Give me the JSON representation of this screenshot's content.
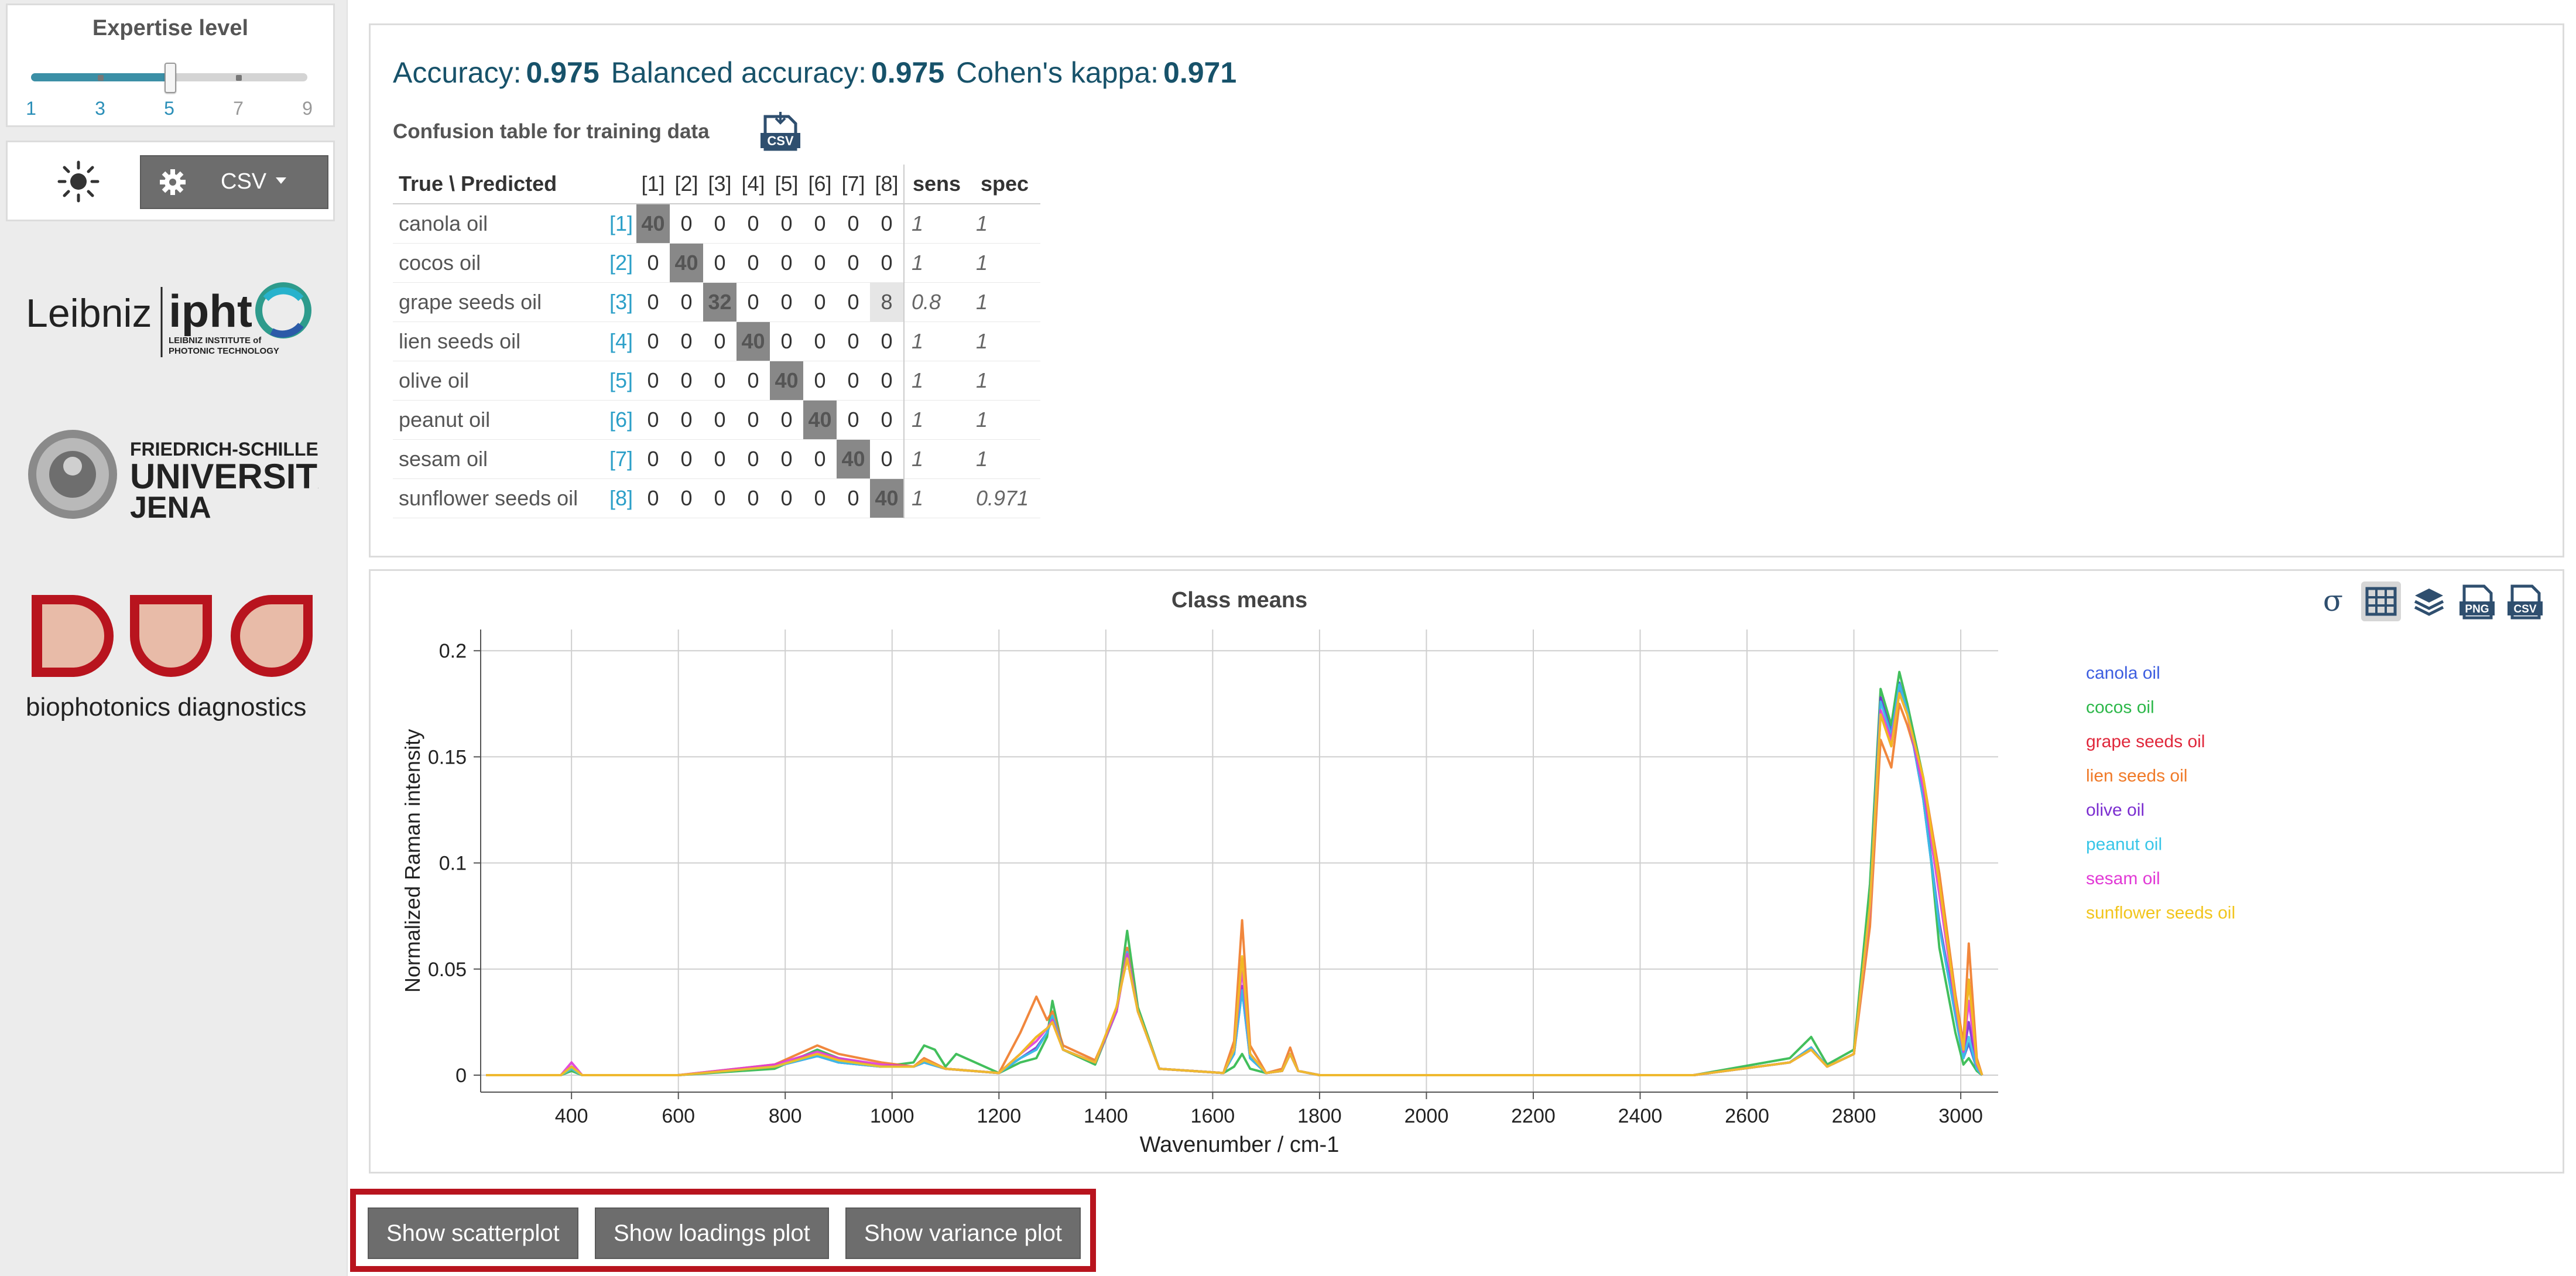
{
  "sidebar": {
    "expertise": {
      "title": "Expertise level",
      "level": 5,
      "labels": [
        "1",
        "3",
        "5",
        "7",
        "9"
      ]
    },
    "controls": {
      "theme_icon": "sun-icon",
      "settings_icon": "gear-icon",
      "csv_label": "CSV"
    },
    "logos": [
      "Leibniz IPHT",
      "Friedrich-Schiller-Universität Jena",
      "Biophotonics diagnostics"
    ]
  },
  "metrics": {
    "accuracy_label": "Accuracy:",
    "accuracy_value": "0.975",
    "balanced_label": "Balanced accuracy:",
    "balanced_value": "0.975",
    "kappa_label": "Cohen's kappa:",
    "kappa_value": "0.971"
  },
  "confusion": {
    "title": "Confusion table for training data",
    "header_label": "True \\ Predicted",
    "col_labels": [
      "[1]",
      "[2]",
      "[3]",
      "[4]",
      "[5]",
      "[6]",
      "[7]",
      "[8]"
    ],
    "sens_label": "sens",
    "spec_label": "spec",
    "rows": [
      {
        "name": "canola oil",
        "idx": "[1]",
        "cells": [
          "40",
          "0",
          "0",
          "0",
          "0",
          "0",
          "0",
          "0"
        ],
        "sens": "1",
        "spec": "1"
      },
      {
        "name": "cocos oil",
        "idx": "[2]",
        "cells": [
          "0",
          "40",
          "0",
          "0",
          "0",
          "0",
          "0",
          "0"
        ],
        "sens": "1",
        "spec": "1"
      },
      {
        "name": "grape seeds oil",
        "idx": "[3]",
        "cells": [
          "0",
          "0",
          "32",
          "0",
          "0",
          "0",
          "0",
          "8"
        ],
        "sens": "0.8",
        "spec": "1"
      },
      {
        "name": "lien seeds oil",
        "idx": "[4]",
        "cells": [
          "0",
          "0",
          "0",
          "40",
          "0",
          "0",
          "0",
          "0"
        ],
        "sens": "1",
        "spec": "1"
      },
      {
        "name": "olive oil",
        "idx": "[5]",
        "cells": [
          "0",
          "0",
          "0",
          "0",
          "40",
          "0",
          "0",
          "0"
        ],
        "sens": "1",
        "spec": "1"
      },
      {
        "name": "peanut oil",
        "idx": "[6]",
        "cells": [
          "0",
          "0",
          "0",
          "0",
          "0",
          "40",
          "0",
          "0"
        ],
        "sens": "1",
        "spec": "1"
      },
      {
        "name": "sesam oil",
        "idx": "[7]",
        "cells": [
          "0",
          "0",
          "0",
          "0",
          "0",
          "0",
          "40",
          "0"
        ],
        "sens": "1",
        "spec": "1"
      },
      {
        "name": "sunflower seeds oil",
        "idx": "[8]",
        "cells": [
          "0",
          "0",
          "0",
          "0",
          "0",
          "0",
          "0",
          "40"
        ],
        "sens": "1",
        "spec": "0.971"
      }
    ]
  },
  "plot_toolbar": {
    "icons": [
      "sigma-icon",
      "grid-icon",
      "layers-icon",
      "png-download-icon",
      "csv-download-icon"
    ]
  },
  "chart_data": {
    "type": "line",
    "title": "Class means",
    "xlabel": "Wavenumber / cm-1",
    "ylabel": "Normalized Raman intensity",
    "xlim": [
      230,
      3070
    ],
    "ylim": [
      -0.008,
      0.21
    ],
    "xticks": [
      "400",
      "600",
      "800",
      "1000",
      "1200",
      "1400",
      "1600",
      "1800",
      "2000",
      "2200",
      "2400",
      "2600",
      "2800",
      "3000"
    ],
    "yticks": [
      "0",
      "0.05",
      "0.1",
      "0.15",
      "0.2"
    ],
    "grid": true,
    "legend_position": "right",
    "series": [
      {
        "name": "canola oil",
        "color": "#3d5ee0",
        "x": [
          240,
          380,
          400,
          420,
          600,
          780,
          860,
          900,
          980,
          1040,
          1060,
          1100,
          1200,
          1240,
          1270,
          1290,
          1300,
          1320,
          1380,
          1420,
          1440,
          1460,
          1500,
          1620,
          1640,
          1655,
          1670,
          1700,
          1730,
          1745,
          1760,
          1800,
          2500,
          2680,
          2720,
          2750,
          2800,
          2830,
          2850,
          2870,
          2885,
          2900,
          2930,
          2960,
          2990,
          3005,
          3015,
          3030,
          3040
        ],
        "y": [
          0,
          0,
          0.003,
          0,
          0,
          0.004,
          0.009,
          0.006,
          0.004,
          0.004,
          0.006,
          0.003,
          0.001,
          0.008,
          0.012,
          0.02,
          0.028,
          0.012,
          0.006,
          0.03,
          0.058,
          0.03,
          0.003,
          0.001,
          0.01,
          0.04,
          0.008,
          0.001,
          0.002,
          0.01,
          0.002,
          0,
          0,
          0.006,
          0.013,
          0.004,
          0.01,
          0.08,
          0.178,
          0.162,
          0.185,
          0.172,
          0.13,
          0.07,
          0.028,
          0.008,
          0.015,
          0.003,
          0
        ]
      },
      {
        "name": "cocos oil",
        "color": "#2db84a",
        "x": [
          240,
          380,
          400,
          420,
          600,
          780,
          860,
          900,
          980,
          1040,
          1060,
          1080,
          1100,
          1120,
          1200,
          1240,
          1270,
          1290,
          1300,
          1320,
          1380,
          1420,
          1440,
          1460,
          1500,
          1620,
          1640,
          1655,
          1670,
          1700,
          1730,
          1745,
          1760,
          1800,
          2500,
          2680,
          2720,
          2750,
          2800,
          2830,
          2850,
          2870,
          2885,
          2900,
          2930,
          2960,
          2990,
          3005,
          3015,
          3030,
          3040
        ],
        "y": [
          0,
          0,
          0.002,
          0,
          0,
          0.003,
          0.012,
          0.008,
          0.004,
          0.006,
          0.014,
          0.012,
          0.004,
          0.01,
          0.001,
          0.006,
          0.008,
          0.018,
          0.035,
          0.012,
          0.005,
          0.03,
          0.068,
          0.032,
          0.003,
          0.001,
          0.004,
          0.01,
          0.003,
          0.001,
          0.002,
          0.01,
          0.002,
          0,
          0,
          0.008,
          0.018,
          0.005,
          0.012,
          0.09,
          0.182,
          0.165,
          0.19,
          0.175,
          0.14,
          0.06,
          0.02,
          0.005,
          0.008,
          0.002,
          0
        ]
      },
      {
        "name": "grape seeds oil",
        "color": "#e0283c",
        "x": [
          240,
          380,
          400,
          420,
          600,
          780,
          860,
          900,
          980,
          1040,
          1060,
          1100,
          1200,
          1240,
          1270,
          1290,
          1300,
          1320,
          1380,
          1420,
          1440,
          1460,
          1500,
          1620,
          1640,
          1655,
          1670,
          1700,
          1730,
          1745,
          1760,
          1800,
          2500,
          2680,
          2720,
          2750,
          2800,
          2830,
          2850,
          2870,
          2885,
          2900,
          2930,
          2960,
          2990,
          3005,
          3015,
          3030,
          3040
        ],
        "y": [
          0,
          0,
          0.004,
          0,
          0,
          0.004,
          0.01,
          0.007,
          0.004,
          0.004,
          0.007,
          0.003,
          0.001,
          0.01,
          0.018,
          0.022,
          0.025,
          0.012,
          0.006,
          0.032,
          0.055,
          0.03,
          0.003,
          0.001,
          0.012,
          0.055,
          0.01,
          0.001,
          0.002,
          0.01,
          0.002,
          0,
          0,
          0.006,
          0.012,
          0.004,
          0.01,
          0.08,
          0.17,
          0.155,
          0.18,
          0.17,
          0.14,
          0.09,
          0.035,
          0.012,
          0.045,
          0.006,
          0
        ]
      },
      {
        "name": "lien seeds oil",
        "color": "#f07a28",
        "x": [
          240,
          380,
          400,
          420,
          600,
          780,
          860,
          900,
          980,
          1040,
          1060,
          1100,
          1200,
          1240,
          1270,
          1290,
          1300,
          1320,
          1380,
          1420,
          1440,
          1460,
          1500,
          1620,
          1640,
          1655,
          1670,
          1700,
          1730,
          1745,
          1760,
          1800,
          2500,
          2680,
          2720,
          2750,
          2800,
          2830,
          2850,
          2870,
          2885,
          2900,
          2930,
          2960,
          2990,
          3005,
          3015,
          3030,
          3040
        ],
        "y": [
          0,
          0,
          0.003,
          0,
          0,
          0.005,
          0.014,
          0.01,
          0.006,
          0.004,
          0.008,
          0.003,
          0.001,
          0.02,
          0.037,
          0.026,
          0.03,
          0.014,
          0.007,
          0.03,
          0.06,
          0.03,
          0.003,
          0.001,
          0.016,
          0.073,
          0.014,
          0.001,
          0.003,
          0.013,
          0.002,
          0,
          0,
          0.006,
          0.013,
          0.004,
          0.01,
          0.07,
          0.158,
          0.145,
          0.175,
          0.165,
          0.14,
          0.095,
          0.038,
          0.015,
          0.062,
          0.008,
          0
        ]
      },
      {
        "name": "olive oil",
        "color": "#7b2ed0",
        "x": [
          240,
          380,
          400,
          420,
          600,
          780,
          860,
          900,
          980,
          1040,
          1060,
          1100,
          1200,
          1240,
          1270,
          1290,
          1300,
          1320,
          1380,
          1420,
          1440,
          1460,
          1500,
          1620,
          1640,
          1655,
          1670,
          1700,
          1730,
          1745,
          1760,
          1800,
          2500,
          2680,
          2720,
          2750,
          2800,
          2830,
          2850,
          2870,
          2885,
          2900,
          2930,
          2960,
          2990,
          3005,
          3015,
          3030,
          3040
        ],
        "y": [
          0,
          0,
          0.004,
          0,
          0,
          0.004,
          0.009,
          0.006,
          0.004,
          0.004,
          0.006,
          0.003,
          0.001,
          0.008,
          0.013,
          0.02,
          0.027,
          0.012,
          0.006,
          0.03,
          0.058,
          0.03,
          0.003,
          0.001,
          0.01,
          0.042,
          0.008,
          0.001,
          0.002,
          0.01,
          0.002,
          0,
          0,
          0.006,
          0.013,
          0.004,
          0.01,
          0.08,
          0.178,
          0.16,
          0.183,
          0.172,
          0.13,
          0.072,
          0.03,
          0.009,
          0.025,
          0.004,
          0
        ]
      },
      {
        "name": "peanut oil",
        "color": "#38c6e8",
        "x": [
          240,
          380,
          400,
          420,
          600,
          780,
          860,
          900,
          980,
          1040,
          1060,
          1100,
          1200,
          1240,
          1270,
          1290,
          1300,
          1320,
          1380,
          1420,
          1440,
          1460,
          1500,
          1620,
          1640,
          1655,
          1670,
          1700,
          1730,
          1745,
          1760,
          1800,
          2500,
          2680,
          2720,
          2750,
          2800,
          2830,
          2850,
          2870,
          2885,
          2900,
          2930,
          2960,
          2990,
          3005,
          3015,
          3030,
          3040
        ],
        "y": [
          0,
          0,
          0.003,
          0,
          0,
          0.004,
          0.009,
          0.006,
          0.004,
          0.004,
          0.006,
          0.003,
          0.001,
          0.008,
          0.012,
          0.02,
          0.028,
          0.012,
          0.006,
          0.03,
          0.058,
          0.03,
          0.003,
          0.001,
          0.01,
          0.04,
          0.008,
          0.001,
          0.002,
          0.01,
          0.002,
          0,
          0,
          0.006,
          0.013,
          0.004,
          0.01,
          0.08,
          0.176,
          0.16,
          0.184,
          0.172,
          0.13,
          0.07,
          0.028,
          0.008,
          0.018,
          0.003,
          0
        ]
      },
      {
        "name": "sesam oil",
        "color": "#e23ad6",
        "x": [
          240,
          380,
          400,
          420,
          600,
          780,
          860,
          900,
          980,
          1040,
          1060,
          1100,
          1200,
          1240,
          1270,
          1290,
          1300,
          1320,
          1380,
          1420,
          1440,
          1460,
          1500,
          1620,
          1640,
          1655,
          1670,
          1700,
          1730,
          1745,
          1760,
          1800,
          2500,
          2680,
          2720,
          2750,
          2800,
          2830,
          2850,
          2870,
          2885,
          2900,
          2930,
          2960,
          2990,
          3005,
          3015,
          3030,
          3040
        ],
        "y": [
          0,
          0,
          0.006,
          0,
          0,
          0.005,
          0.011,
          0.008,
          0.005,
          0.004,
          0.007,
          0.003,
          0.001,
          0.01,
          0.016,
          0.022,
          0.026,
          0.012,
          0.006,
          0.03,
          0.057,
          0.03,
          0.003,
          0.001,
          0.012,
          0.05,
          0.01,
          0.001,
          0.002,
          0.01,
          0.002,
          0,
          0,
          0.006,
          0.012,
          0.004,
          0.01,
          0.078,
          0.172,
          0.158,
          0.18,
          0.17,
          0.135,
          0.085,
          0.033,
          0.011,
          0.035,
          0.005,
          0
        ]
      },
      {
        "name": "sunflower seeds oil",
        "color": "#f2c51d",
        "x": [
          240,
          380,
          400,
          420,
          600,
          780,
          860,
          900,
          980,
          1040,
          1060,
          1100,
          1200,
          1240,
          1270,
          1290,
          1300,
          1320,
          1380,
          1420,
          1440,
          1460,
          1500,
          1620,
          1640,
          1655,
          1670,
          1700,
          1730,
          1745,
          1760,
          1800,
          2500,
          2680,
          2720,
          2750,
          2800,
          2830,
          2850,
          2870,
          2885,
          2900,
          2930,
          2960,
          2990,
          3005,
          3015,
          3030,
          3040
        ],
        "y": [
          0,
          0,
          0.004,
          0,
          0,
          0.004,
          0.01,
          0.007,
          0.004,
          0.004,
          0.007,
          0.003,
          0.001,
          0.01,
          0.018,
          0.022,
          0.025,
          0.012,
          0.006,
          0.032,
          0.055,
          0.03,
          0.003,
          0.001,
          0.012,
          0.056,
          0.01,
          0.001,
          0.002,
          0.01,
          0.002,
          0,
          0,
          0.006,
          0.012,
          0.004,
          0.01,
          0.08,
          0.17,
          0.155,
          0.18,
          0.17,
          0.14,
          0.09,
          0.035,
          0.012,
          0.045,
          0.006,
          0
        ]
      }
    ]
  },
  "actions": {
    "scatter_label": "Show scatterplot",
    "loadings_label": "Show loadings plot",
    "variance_label": "Show variance plot"
  }
}
